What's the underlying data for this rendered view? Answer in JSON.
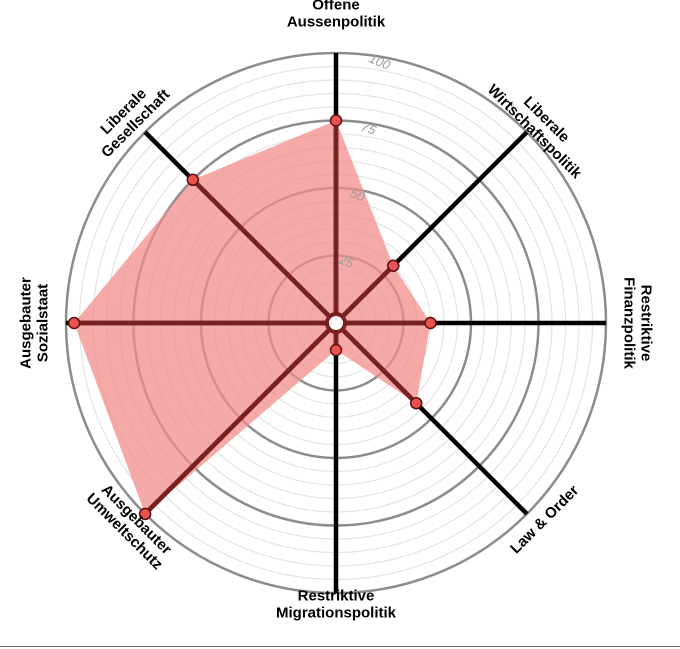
{
  "chart_data": {
    "type": "radar",
    "axes": [
      {
        "label_lines": [
          "Offene",
          "Aussenpolitik"
        ],
        "value": 75
      },
      {
        "label_lines": [
          "Liberale",
          "Wirtschaftspolitik"
        ],
        "value": 30
      },
      {
        "label_lines": [
          "Restriktive",
          "Finanzpolitik"
        ],
        "value": 35
      },
      {
        "label_lines": [
          "Law & Order"
        ],
        "value": 42
      },
      {
        "label_lines": [
          "Restriktive",
          "Migrationspolitik"
        ],
        "value": 10
      },
      {
        "label_lines": [
          "Ausgebauter",
          "Umweltschutz"
        ],
        "value": 100
      },
      {
        "label_lines": [
          "Ausgebauter",
          "Sozialstaat"
        ],
        "value": 97
      },
      {
        "label_lines": [
          "Liberale",
          "Gesellschaft"
        ],
        "value": 75
      }
    ],
    "rlim": [
      0,
      100
    ],
    "ticks": [
      25,
      50,
      75,
      100
    ],
    "tick_labels": [
      "25",
      "50",
      "75",
      "100"
    ],
    "grid_step": 5,
    "colors": {
      "fill": "#f28e8a",
      "fill_opacity": 0.75,
      "outline": "#7a2020",
      "point": "#e8524f",
      "axis": "#000000",
      "major_grid": "#8c8c8c",
      "minor_grid": "#e3e3e3"
    }
  }
}
